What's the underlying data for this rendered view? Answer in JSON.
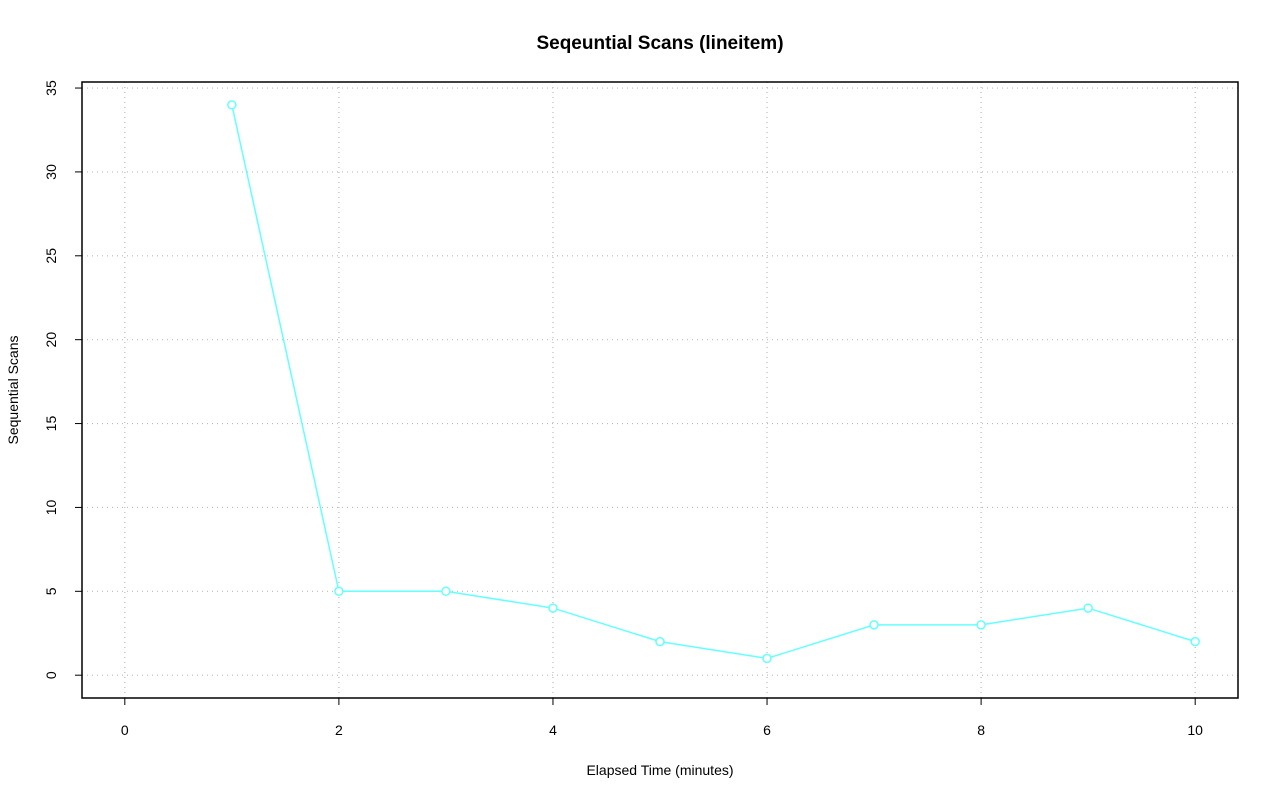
{
  "chart_data": {
    "type": "line",
    "title": "Seqeuntial Scans (lineitem)",
    "x_label": "Elapsed Time (minutes)",
    "y_label": "Sequential Scans",
    "x": [
      1,
      2,
      3,
      4,
      5,
      6,
      7,
      8,
      9,
      10
    ],
    "series": [
      {
        "color": "#66ffff",
        "values": [
          34,
          5,
          5,
          4,
          2,
          1,
          3,
          3,
          4,
          2
        ]
      }
    ],
    "xlim": [
      -0.4,
      10.4
    ],
    "ylim": [
      -1.36,
      35.36
    ],
    "xticks": [
      0,
      2,
      4,
      6,
      8,
      10
    ],
    "yticks": [
      0,
      5,
      10,
      15,
      20,
      25,
      30,
      35
    ],
    "grid": true
  }
}
